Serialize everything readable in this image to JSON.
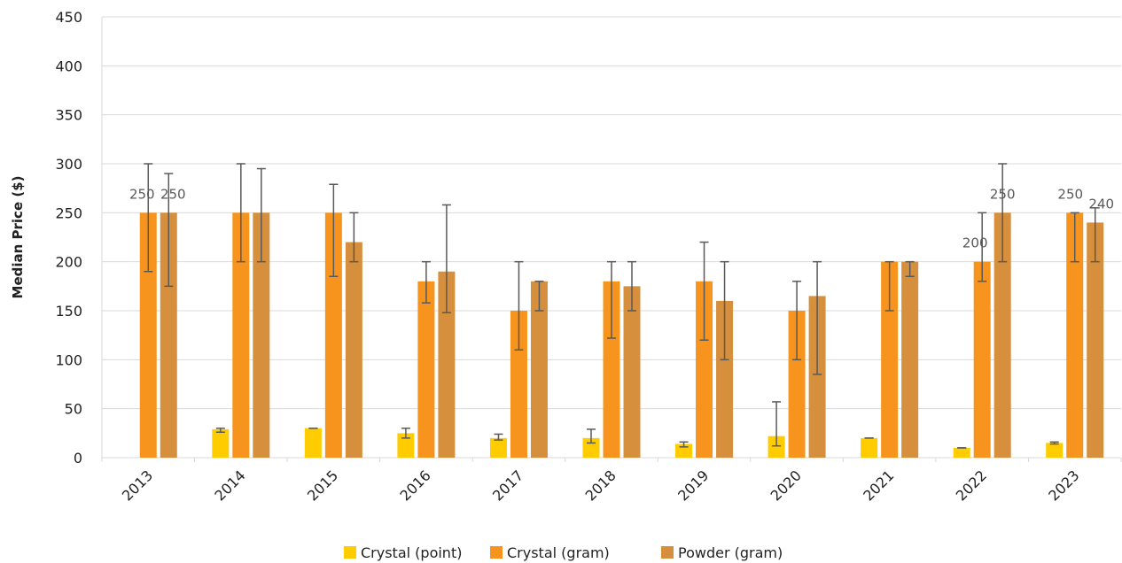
{
  "chart_data": {
    "type": "bar",
    "categories": [
      "2013",
      "2014",
      "2015",
      "2016",
      "2017",
      "2018",
      "2019",
      "2020",
      "2021",
      "2022",
      "2023"
    ],
    "ylabel": "Median Price ($)",
    "xlabel": "",
    "ylim": [
      0,
      450
    ],
    "yticks": [
      0,
      50,
      100,
      150,
      200,
      250,
      300,
      350,
      400,
      450
    ],
    "grid": true,
    "legend_position": "bottom",
    "series": [
      {
        "name": "Crystal (point)",
        "color": "#FFCC00",
        "values": [
          null,
          29,
          30,
          25,
          20,
          20,
          14,
          22,
          20,
          10,
          15
        ],
        "error_low": [
          null,
          26,
          30,
          20,
          18,
          15,
          11,
          12,
          20,
          10,
          14
        ],
        "error_high": [
          null,
          30,
          30,
          30,
          24,
          29,
          16,
          57,
          20,
          10,
          16
        ]
      },
      {
        "name": "Crystal (gram)",
        "color": "#F7941D",
        "values": [
          250,
          250,
          250,
          180,
          150,
          180,
          180,
          150,
          200,
          200,
          250
        ],
        "error_low": [
          190,
          200,
          185,
          158,
          110,
          122,
          120,
          100,
          150,
          180,
          200
        ],
        "error_high": [
          300,
          300,
          279,
          200,
          200,
          200,
          220,
          180,
          200,
          250,
          250
        ]
      },
      {
        "name": "Powder (gram)",
        "color": "#D68F3C",
        "values": [
          250,
          250,
          220,
          190,
          180,
          175,
          160,
          165,
          200,
          250,
          240
        ],
        "error_low": [
          175,
          200,
          200,
          148,
          150,
          150,
          100,
          85,
          185,
          200,
          200
        ],
        "error_high": [
          290,
          295,
          250,
          258,
          180,
          200,
          200,
          200,
          200,
          300,
          255
        ]
      }
    ],
    "data_labels": [
      {
        "series": 1,
        "category": "2013",
        "text": "250"
      },
      {
        "series": 2,
        "category": "2013",
        "text": "250"
      },
      {
        "series": 1,
        "category": "2022",
        "text": "200"
      },
      {
        "series": 2,
        "category": "2022",
        "text": "250"
      },
      {
        "series": 1,
        "category": "2023",
        "text": "250"
      },
      {
        "series": 2,
        "category": "2023",
        "text": "240"
      }
    ],
    "colors": {
      "grid": "#d9d9d9",
      "error_bar": "#595959"
    }
  }
}
